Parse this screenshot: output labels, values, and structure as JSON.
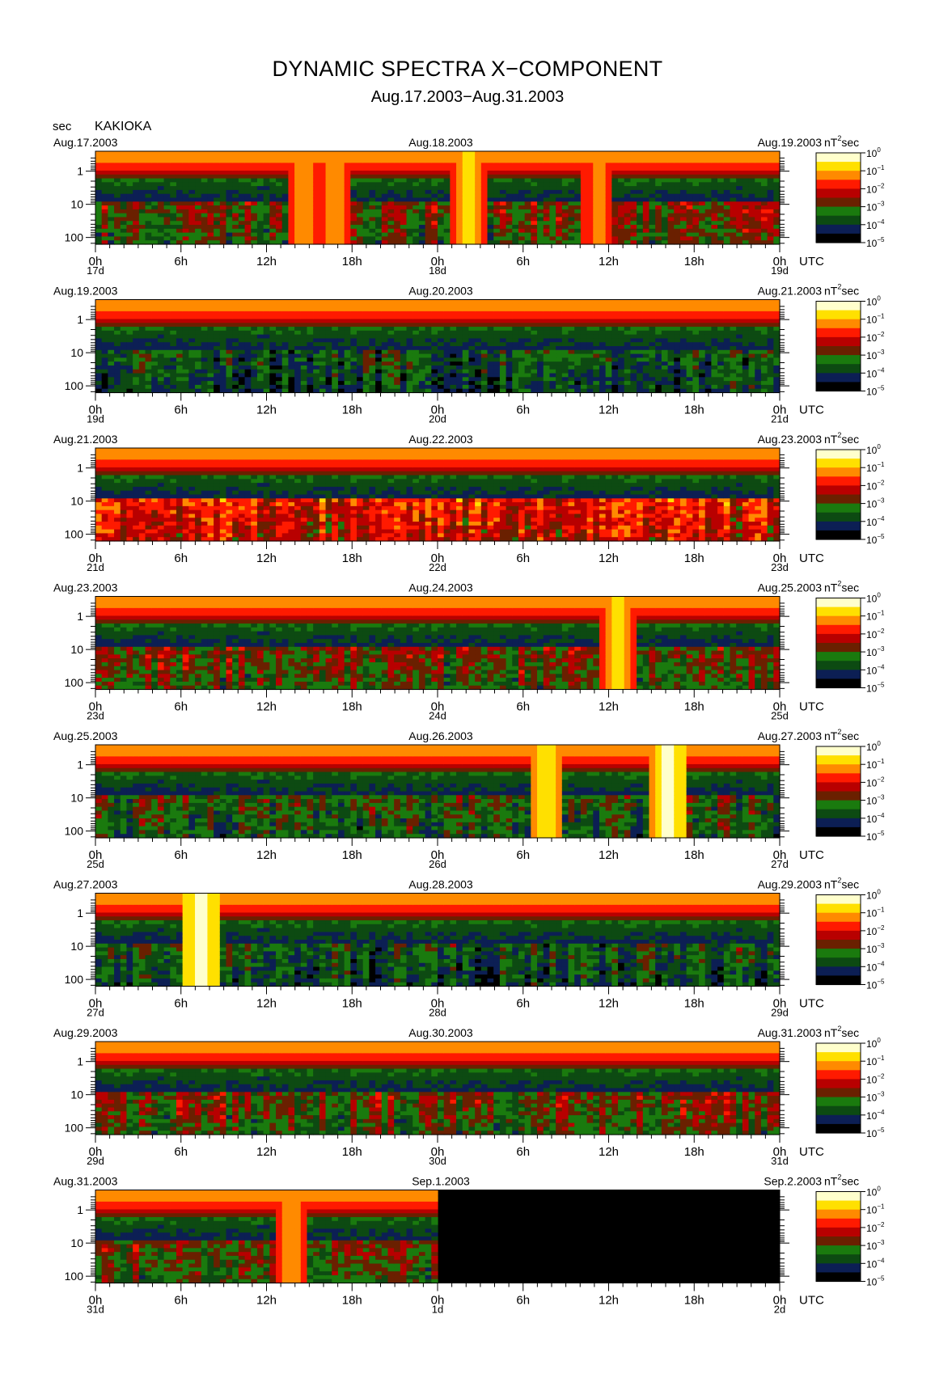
{
  "title": "DYNAMIC SPECTRA X−COMPONENT",
  "subtitle": "Aug.17.2003−Aug.31.2003",
  "yaxis_unit": "sec",
  "station": "KAKIOKA",
  "colorbar_unit": "nT",
  "colorbar_unit_suffix": "sec",
  "x_unit": "UTC",
  "chart_data": {
    "type": "heatmap",
    "title": "DYNAMIC SPECTRA X−COMPONENT",
    "subtitle": "Aug.17.2003−Aug.31.2003",
    "ylabel": "sec",
    "y_scale": "log",
    "y_ticks": [
      1,
      10,
      100
    ],
    "y_tick_labels": [
      "1",
      "10",
      "100"
    ],
    "x_tick_labels": [
      "0h",
      "6h",
      "12h",
      "18h",
      "0h",
      "6h",
      "12h",
      "18h",
      "0h"
    ],
    "x_unit": "UTC",
    "colorbar": {
      "label": "nT²sec",
      "scale": "log",
      "ticks": [
        "10^0",
        "10^-1",
        "10^-2",
        "10^-3",
        "10^-4",
        "10^-5"
      ],
      "colors": [
        "#ffffcc",
        "#ffe000",
        "#ff8a00",
        "#ff1a00",
        "#b80000",
        "#6a2000",
        "#1a7a0e",
        "#0d4a12",
        "#0c1f54",
        "#000000"
      ]
    },
    "panels": [
      {
        "date_left": "Aug.17.2003",
        "date_mid": "Aug.18.2003",
        "date_right": "Aug.19.2003",
        "day_labels": [
          "17d",
          "18d",
          "19d"
        ],
        "activity": "moderate",
        "events": [
          {
            "hour": 14.5,
            "strength": 0.6
          },
          {
            "hour": 16.5,
            "strength": 0.6
          },
          {
            "hour": 26,
            "strength": 0.7
          },
          {
            "hour": 35,
            "strength": 0.5
          }
        ]
      },
      {
        "date_left": "Aug.19.2003",
        "date_mid": "Aug.20.2003",
        "date_right": "Aug.21.2003",
        "day_labels": [
          "19d",
          "20d",
          "21d"
        ],
        "activity": "low",
        "events": []
      },
      {
        "date_left": "Aug.21.2003",
        "date_mid": "Aug.22.2003",
        "date_right": "Aug.23.2003",
        "day_labels": [
          "21d",
          "22d",
          "23d"
        ],
        "activity": "high",
        "events": []
      },
      {
        "date_left": "Aug.23.2003",
        "date_mid": "Aug.24.2003",
        "date_right": "Aug.25.2003",
        "day_labels": [
          "23d",
          "24d",
          "25d"
        ],
        "activity": "moderate",
        "events": [
          {
            "hour": 36.5,
            "strength": 0.7
          }
        ]
      },
      {
        "date_left": "Aug.25.2003",
        "date_mid": "Aug.26.2003",
        "date_right": "Aug.27.2003",
        "day_labels": [
          "25d",
          "26d",
          "27d"
        ],
        "activity": "low-moderate",
        "events": [
          {
            "hour": 31.5,
            "strength": 0.85
          },
          {
            "hour": 40,
            "strength": 1.0
          }
        ]
      },
      {
        "date_left": "Aug.27.2003",
        "date_mid": "Aug.28.2003",
        "date_right": "Aug.29.2003",
        "day_labels": [
          "27d",
          "28d",
          "29d"
        ],
        "activity": "low",
        "events": [
          {
            "hour": 7.2,
            "strength": 1.0
          }
        ]
      },
      {
        "date_left": "Aug.29.2003",
        "date_mid": "Aug.30.2003",
        "date_right": "Aug.31.2003",
        "day_labels": [
          "29d",
          "30d",
          "31d"
        ],
        "activity": "moderate",
        "events": []
      },
      {
        "date_left": "Aug.31.2003",
        "date_mid": "Sep.1.2003",
        "date_right": "Sep.2.2003",
        "day_labels": [
          "31d",
          "1d",
          "2d"
        ],
        "activity": "moderate",
        "events": [
          {
            "hour": 13.5,
            "strength": 0.6
          }
        ],
        "no_data_from_hour": 24
      }
    ]
  }
}
